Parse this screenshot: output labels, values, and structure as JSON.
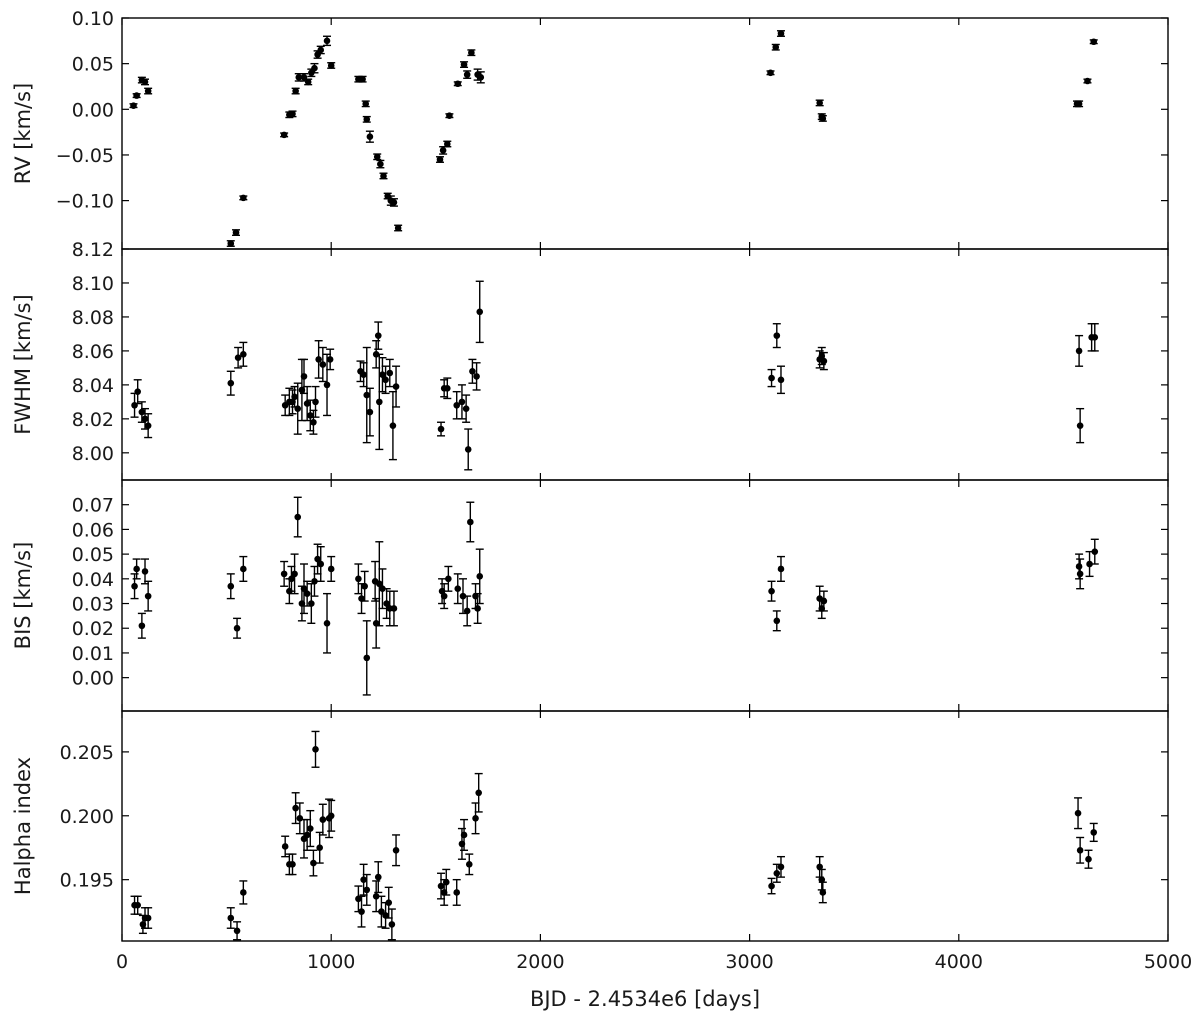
{
  "chart_data": [
    {
      "type": "scatter",
      "ylabel": "RV [km/s]",
      "ylim": [
        -0.153,
        0.1
      ],
      "yticks": [
        0.1,
        0.05,
        0.0,
        -0.05,
        -0.1
      ],
      "ytick_labels": [
        "0.10",
        "0.05",
        "0.00",
        "−0.05",
        "−0.10"
      ],
      "xlim": [
        0,
        5000
      ],
      "points": [
        [
          55,
          0.004,
          0.002
        ],
        [
          70,
          0.015,
          0.002
        ],
        [
          95,
          0.032,
          0.003
        ],
        [
          110,
          0.03,
          0.003
        ],
        [
          125,
          0.02,
          0.003
        ],
        [
          520,
          -0.147,
          0.003
        ],
        [
          545,
          -0.135,
          0.003
        ],
        [
          580,
          -0.097,
          0.002
        ],
        [
          775,
          -0.028,
          0.002
        ],
        [
          800,
          -0.006,
          0.003
        ],
        [
          815,
          -0.005,
          0.003
        ],
        [
          830,
          0.02,
          0.003
        ],
        [
          845,
          0.035,
          0.004
        ],
        [
          870,
          0.035,
          0.004
        ],
        [
          890,
          0.03,
          0.003
        ],
        [
          905,
          0.04,
          0.004
        ],
        [
          920,
          0.045,
          0.005
        ],
        [
          935,
          0.06,
          0.004
        ],
        [
          950,
          0.065,
          0.004
        ],
        [
          980,
          0.075,
          0.005
        ],
        [
          1000,
          0.048,
          0.003
        ],
        [
          1130,
          0.033,
          0.003
        ],
        [
          1150,
          0.033,
          0.003
        ],
        [
          1165,
          0.006,
          0.003
        ],
        [
          1170,
          -0.011,
          0.003
        ],
        [
          1185,
          -0.03,
          0.006
        ],
        [
          1220,
          -0.052,
          0.003
        ],
        [
          1235,
          -0.06,
          0.004
        ],
        [
          1250,
          -0.073,
          0.003
        ],
        [
          1270,
          -0.095,
          0.003
        ],
        [
          1285,
          -0.1,
          0.005
        ],
        [
          1300,
          -0.102,
          0.004
        ],
        [
          1320,
          -0.13,
          0.003
        ],
        [
          1520,
          -0.055,
          0.003
        ],
        [
          1535,
          -0.045,
          0.004
        ],
        [
          1555,
          -0.038,
          0.003
        ],
        [
          1565,
          -0.007,
          0.002
        ],
        [
          1605,
          0.028,
          0.002
        ],
        [
          1635,
          0.049,
          0.003
        ],
        [
          1650,
          0.038,
          0.004
        ],
        [
          1670,
          0.062,
          0.003
        ],
        [
          1700,
          0.038,
          0.006
        ],
        [
          1715,
          0.035,
          0.006
        ],
        [
          3100,
          0.04,
          0.002
        ],
        [
          3125,
          0.068,
          0.003
        ],
        [
          3150,
          0.083,
          0.003
        ],
        [
          3335,
          0.007,
          0.003
        ],
        [
          3345,
          -0.008,
          0.003
        ],
        [
          3350,
          -0.01,
          0.003
        ],
        [
          4565,
          0.006,
          0.003
        ],
        [
          4575,
          0.006,
          0.003
        ],
        [
          4615,
          0.031,
          0.002
        ],
        [
          4645,
          0.074,
          0.002
        ]
      ]
    },
    {
      "type": "scatter",
      "ylabel": "FWHM [km/s]",
      "ylim": [
        7.984,
        8.12
      ],
      "yticks": [
        8.12,
        8.1,
        8.08,
        8.06,
        8.04,
        8.02,
        8.0
      ],
      "ytick_labels": [
        "8.12",
        "8.10",
        "8.08",
        "8.06",
        "8.04",
        "8.02",
        "8.00"
      ],
      "xlim": [
        0,
        5000
      ],
      "points": [
        [
          60,
          8.028,
          0.007
        ],
        [
          75,
          8.036,
          0.007
        ],
        [
          95,
          8.024,
          0.006
        ],
        [
          110,
          8.02,
          0.006
        ],
        [
          125,
          8.016,
          0.007
        ],
        [
          520,
          8.041,
          0.007
        ],
        [
          555,
          8.056,
          0.006
        ],
        [
          580,
          8.058,
          0.007
        ],
        [
          780,
          8.028,
          0.006
        ],
        [
          800,
          8.03,
          0.008
        ],
        [
          815,
          8.03,
          0.007
        ],
        [
          825,
          8.033,
          0.006
        ],
        [
          840,
          8.026,
          0.015
        ],
        [
          860,
          8.037,
          0.018
        ],
        [
          870,
          8.045,
          0.01
        ],
        [
          885,
          8.029,
          0.01
        ],
        [
          900,
          8.022,
          0.009
        ],
        [
          915,
          8.018,
          0.007
        ],
        [
          925,
          8.03,
          0.009
        ],
        [
          940,
          8.055,
          0.011
        ],
        [
          960,
          8.052,
          0.01
        ],
        [
          980,
          8.04,
          0.018
        ],
        [
          995,
          8.055,
          0.006
        ],
        [
          1140,
          8.048,
          0.006
        ],
        [
          1155,
          8.046,
          0.007
        ],
        [
          1170,
          8.034,
          0.028
        ],
        [
          1185,
          8.024,
          0.014
        ],
        [
          1215,
          8.058,
          0.008
        ],
        [
          1225,
          8.069,
          0.008
        ],
        [
          1230,
          8.03,
          0.028
        ],
        [
          1245,
          8.046,
          0.01
        ],
        [
          1260,
          8.043,
          0.008
        ],
        [
          1280,
          8.047,
          0.008
        ],
        [
          1295,
          8.016,
          0.02
        ],
        [
          1310,
          8.039,
          0.012
        ],
        [
          1525,
          8.014,
          0.004
        ],
        [
          1540,
          8.038,
          0.005
        ],
        [
          1555,
          8.038,
          0.006
        ],
        [
          1600,
          8.028,
          0.008
        ],
        [
          1625,
          8.03,
          0.01
        ],
        [
          1645,
          8.026,
          0.008
        ],
        [
          1655,
          8.002,
          0.012
        ],
        [
          1675,
          8.048,
          0.007
        ],
        [
          1695,
          8.045,
          0.008
        ],
        [
          1710,
          8.083,
          0.018
        ],
        [
          3105,
          8.044,
          0.005
        ],
        [
          3130,
          8.069,
          0.007
        ],
        [
          3150,
          8.043,
          0.008
        ],
        [
          3335,
          8.055,
          0.005
        ],
        [
          3345,
          8.057,
          0.005
        ],
        [
          3355,
          8.054,
          0.005
        ],
        [
          4575,
          8.06,
          0.009
        ],
        [
          4580,
          8.016,
          0.01
        ],
        [
          4635,
          8.068,
          0.008
        ],
        [
          4650,
          8.068,
          0.008
        ]
      ]
    },
    {
      "type": "scatter",
      "ylabel": "BIS [km/s]",
      "ylim": [
        -0.0135,
        0.08
      ],
      "yticks": [
        0.07,
        0.06,
        0.05,
        0.04,
        0.03,
        0.02,
        0.01,
        0.0
      ],
      "ytick_labels": [
        "0.07",
        "0.06",
        "0.05",
        "0.04",
        "0.03",
        "0.02",
        "0.01",
        "0.00"
      ],
      "xlim": [
        0,
        5000
      ],
      "points": [
        [
          60,
          0.037,
          0.005
        ],
        [
          70,
          0.044,
          0.004
        ],
        [
          95,
          0.021,
          0.005
        ],
        [
          110,
          0.043,
          0.005
        ],
        [
          125,
          0.033,
          0.006
        ],
        [
          520,
          0.037,
          0.005
        ],
        [
          550,
          0.02,
          0.004
        ],
        [
          580,
          0.044,
          0.005
        ],
        [
          775,
          0.042,
          0.005
        ],
        [
          800,
          0.035,
          0.005
        ],
        [
          810,
          0.04,
          0.005
        ],
        [
          825,
          0.042,
          0.008
        ],
        [
          840,
          0.065,
          0.008
        ],
        [
          860,
          0.03,
          0.007
        ],
        [
          870,
          0.036,
          0.01
        ],
        [
          885,
          0.034,
          0.005
        ],
        [
          905,
          0.03,
          0.008
        ],
        [
          920,
          0.039,
          0.006
        ],
        [
          935,
          0.048,
          0.006
        ],
        [
          950,
          0.046,
          0.007
        ],
        [
          980,
          0.022,
          0.012
        ],
        [
          1000,
          0.044,
          0.005
        ],
        [
          1130,
          0.04,
          0.006
        ],
        [
          1145,
          0.032,
          0.006
        ],
        [
          1160,
          0.037,
          0.006
        ],
        [
          1170,
          0.008,
          0.015
        ],
        [
          1210,
          0.039,
          0.008
        ],
        [
          1215,
          0.022,
          0.01
        ],
        [
          1230,
          0.038,
          0.017
        ],
        [
          1245,
          0.036,
          0.008
        ],
        [
          1265,
          0.03,
          0.006
        ],
        [
          1280,
          0.028,
          0.007
        ],
        [
          1300,
          0.028,
          0.007
        ],
        [
          1530,
          0.035,
          0.005
        ],
        [
          1540,
          0.033,
          0.005
        ],
        [
          1560,
          0.04,
          0.005
        ],
        [
          1605,
          0.036,
          0.006
        ],
        [
          1630,
          0.033,
          0.007
        ],
        [
          1650,
          0.027,
          0.006
        ],
        [
          1665,
          0.063,
          0.008
        ],
        [
          1690,
          0.033,
          0.005
        ],
        [
          1700,
          0.028,
          0.006
        ],
        [
          1710,
          0.041,
          0.011
        ],
        [
          3105,
          0.035,
          0.004
        ],
        [
          3130,
          0.023,
          0.004
        ],
        [
          3150,
          0.044,
          0.005
        ],
        [
          3335,
          0.032,
          0.005
        ],
        [
          3345,
          0.028,
          0.004
        ],
        [
          3355,
          0.031,
          0.004
        ],
        [
          4575,
          0.045,
          0.005
        ],
        [
          4580,
          0.042,
          0.006
        ],
        [
          4625,
          0.046,
          0.005
        ],
        [
          4650,
          0.051,
          0.005
        ]
      ]
    },
    {
      "type": "scatter",
      "ylabel": "Halpha index",
      "ylim": [
        0.1902,
        0.2082
      ],
      "yticks": [
        0.205,
        0.2,
        0.195
      ],
      "ytick_labels": [
        "0.205",
        "0.200",
        "0.195"
      ],
      "xlim": [
        0,
        5000
      ],
      "xticks": [
        0,
        1000,
        2000,
        3000,
        4000,
        5000
      ],
      "xtick_labels": [
        "0",
        "1000",
        "2000",
        "3000",
        "4000",
        "5000"
      ],
      "xlabel": "BJD - 2.4534e6 [days]",
      "points": [
        [
          60,
          0.193,
          0.0007
        ],
        [
          75,
          0.193,
          0.0007
        ],
        [
          100,
          0.1915,
          0.0007
        ],
        [
          110,
          0.192,
          0.0008
        ],
        [
          125,
          0.192,
          0.0008
        ],
        [
          520,
          0.192,
          0.0008
        ],
        [
          550,
          0.191,
          0.0007
        ],
        [
          580,
          0.194,
          0.0009
        ],
        [
          780,
          0.1976,
          0.0008
        ],
        [
          800,
          0.1962,
          0.0008
        ],
        [
          815,
          0.1962,
          0.0008
        ],
        [
          830,
          0.2006,
          0.0012
        ],
        [
          850,
          0.1998,
          0.0012
        ],
        [
          870,
          0.1982,
          0.0015
        ],
        [
          885,
          0.1985,
          0.0012
        ],
        [
          900,
          0.199,
          0.0014
        ],
        [
          915,
          0.1963,
          0.001
        ],
        [
          925,
          0.2052,
          0.0014
        ],
        [
          945,
          0.1975,
          0.0012
        ],
        [
          960,
          0.1997,
          0.0012
        ],
        [
          990,
          0.1998,
          0.0015
        ],
        [
          1000,
          0.2,
          0.0012
        ],
        [
          1130,
          0.1935,
          0.001
        ],
        [
          1145,
          0.1925,
          0.0012
        ],
        [
          1155,
          0.195,
          0.0012
        ],
        [
          1170,
          0.1942,
          0.0012
        ],
        [
          1215,
          0.1937,
          0.0012
        ],
        [
          1225,
          0.1952,
          0.0012
        ],
        [
          1240,
          0.1925,
          0.0012
        ],
        [
          1260,
          0.1922,
          0.001
        ],
        [
          1275,
          0.1932,
          0.0012
        ],
        [
          1290,
          0.1915,
          0.0012
        ],
        [
          1310,
          0.1973,
          0.0012
        ],
        [
          1525,
          0.1945,
          0.001
        ],
        [
          1540,
          0.194,
          0.001
        ],
        [
          1550,
          0.1948,
          0.001
        ],
        [
          1600,
          0.194,
          0.001
        ],
        [
          1625,
          0.1978,
          0.0012
        ],
        [
          1635,
          0.1985,
          0.0012
        ],
        [
          1660,
          0.1962,
          0.0008
        ],
        [
          1690,
          0.1998,
          0.0012
        ],
        [
          1705,
          0.2018,
          0.0015
        ],
        [
          3105,
          0.1945,
          0.0006
        ],
        [
          3130,
          0.1955,
          0.0007
        ],
        [
          3150,
          0.196,
          0.0008
        ],
        [
          3335,
          0.196,
          0.0008
        ],
        [
          3345,
          0.195,
          0.0008
        ],
        [
          3350,
          0.194,
          0.0008
        ],
        [
          4570,
          0.2002,
          0.0012
        ],
        [
          4580,
          0.1973,
          0.001
        ],
        [
          4620,
          0.1966,
          0.0007
        ],
        [
          4645,
          0.1987,
          0.0007
        ]
      ]
    }
  ]
}
